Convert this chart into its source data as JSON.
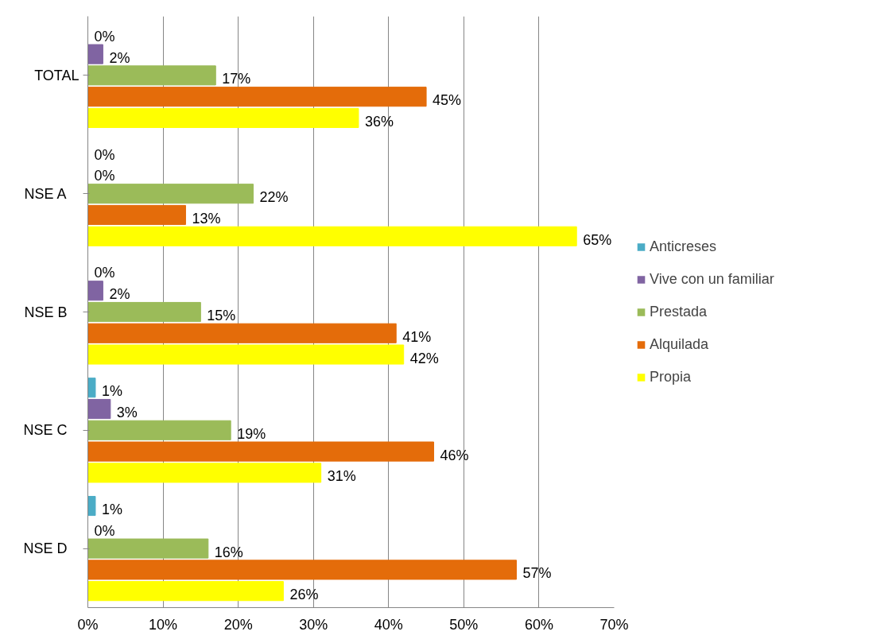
{
  "chart_data": {
    "type": "bar",
    "orientation": "horizontal",
    "categories": [
      "TOTAL",
      "NSE    A",
      "NSE    B",
      "NSE    C",
      "NSE    D"
    ],
    "series": [
      {
        "name": "Anticreses",
        "color": "#4bacc6",
        "values": [
          0,
          0,
          0,
          1,
          1
        ],
        "value_labels": [
          "0%",
          "0%",
          "0%",
          "1%",
          "1%"
        ]
      },
      {
        "name": "Vive con un familiar",
        "color": "#8064a2",
        "values": [
          2,
          0,
          2,
          3,
          0
        ],
        "value_labels": [
          "2%",
          "0%",
          "2%",
          "3%",
          "0%"
        ]
      },
      {
        "name": "Prestada",
        "color": "#9bbb59",
        "values": [
          17,
          22,
          15,
          19,
          16
        ],
        "value_labels": [
          "17%",
          "22%",
          "15%",
          "19%",
          "16%"
        ]
      },
      {
        "name": "Alquilada",
        "color": "#e46c0a",
        "values": [
          45,
          13,
          41,
          46,
          57
        ],
        "value_labels": [
          "45%",
          "13%",
          "41%",
          "46%",
          "57%"
        ]
      },
      {
        "name": "Propia",
        "color": "#ffff00",
        "values": [
          36,
          65,
          42,
          31,
          26
        ],
        "value_labels": [
          "36%",
          "65%",
          "42%",
          "31%",
          "26%"
        ]
      }
    ],
    "xlim": [
      0,
      70
    ],
    "xticks": [
      {
        "value": 0,
        "label": "0%"
      },
      {
        "value": 10,
        "label": "10%"
      },
      {
        "value": 20,
        "label": "20%"
      },
      {
        "value": 30,
        "label": "30%"
      },
      {
        "value": 40,
        "label": "40%"
      },
      {
        "value": 50,
        "label": "50%"
      },
      {
        "value": 60,
        "label": "60%"
      },
      {
        "value": 70,
        "label": "70%"
      }
    ],
    "grid": "x",
    "legend": "right"
  }
}
